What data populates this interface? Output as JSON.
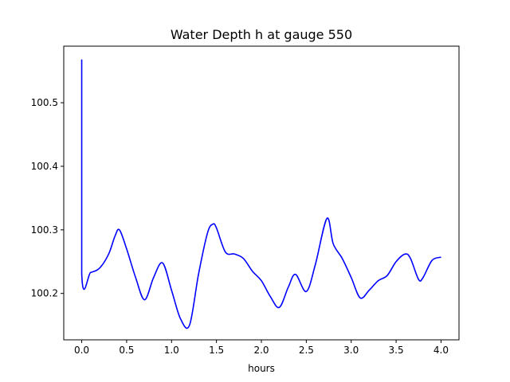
{
  "chart_data": {
    "type": "line",
    "title": "Water Depth h at gauge 550",
    "xlabel": "hours",
    "ylabel": "",
    "xlim": [
      -0.2,
      4.2
    ],
    "ylim": [
      100.127,
      100.589
    ],
    "xticks": [
      0.0,
      0.5,
      1.0,
      1.5,
      2.0,
      2.5,
      3.0,
      3.5,
      4.0
    ],
    "xtick_labels": [
      "0.0",
      "0.5",
      "1.0",
      "1.5",
      "2.0",
      "2.5",
      "3.0",
      "3.5",
      "4.0"
    ],
    "yticks": [
      100.2,
      100.3,
      100.4,
      100.5
    ],
    "ytick_labels": [
      "100.2",
      "100.3",
      "100.4",
      "100.5"
    ],
    "grid": false,
    "legend": "none",
    "series": [
      {
        "color": "#0000ff",
        "x": [
          0.0,
          0.0,
          0.1,
          0.2,
          0.3,
          0.37,
          0.42,
          0.5,
          0.6,
          0.7,
          0.8,
          0.9,
          1.0,
          1.1,
          1.2,
          1.3,
          1.4,
          1.46,
          1.5,
          1.6,
          1.7,
          1.8,
          1.9,
          2.0,
          2.1,
          2.2,
          2.3,
          2.38,
          2.5,
          2.6,
          2.73,
          2.8,
          2.9,
          3.0,
          3.1,
          3.2,
          3.3,
          3.4,
          3.5,
          3.6,
          3.66,
          3.75,
          3.8,
          3.9,
          4.0
        ],
        "y": [
          100.568,
          100.231,
          100.233,
          100.24,
          100.262,
          100.29,
          100.3,
          100.27,
          100.225,
          100.19,
          100.225,
          100.248,
          100.205,
          100.16,
          100.15,
          100.23,
          100.295,
          100.309,
          100.303,
          100.265,
          100.262,
          100.255,
          100.235,
          100.22,
          100.195,
          100.178,
          100.21,
          100.23,
          100.203,
          100.245,
          100.318,
          100.278,
          100.255,
          100.225,
          100.193,
          100.205,
          100.22,
          100.228,
          100.25,
          100.262,
          100.255,
          100.222,
          100.225,
          100.252,
          100.257
        ]
      }
    ]
  }
}
